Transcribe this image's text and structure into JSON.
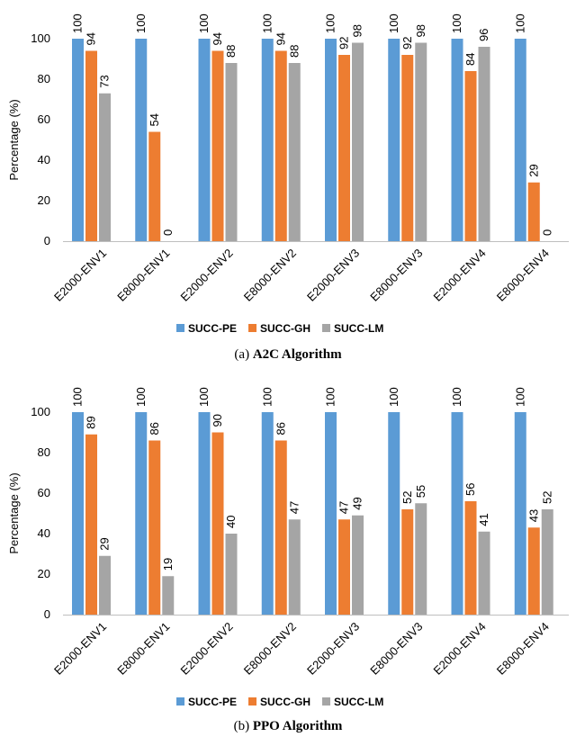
{
  "colors": {
    "pe": "#5B9BD5",
    "gh": "#ED7D31",
    "lm": "#A5A5A5",
    "grid": "#D9D9D9",
    "axis": "#BFBFBF"
  },
  "chart_data": [
    {
      "type": "bar",
      "caption_prefix": "(a)",
      "caption_title": "A2C Algorithm",
      "ylabel": "Percentage (%)",
      "ylim": [
        0,
        100
      ],
      "yticks": [
        0,
        20,
        40,
        60,
        80,
        100
      ],
      "categories": [
        "E2000-ENV1",
        "E8000-ENV1",
        "E2000-ENV2",
        "E8000-ENV2",
        "E2000-ENV3",
        "E8000-ENV3",
        "E2000-ENV4",
        "E8000-ENV4"
      ],
      "series": [
        {
          "name": "SUCC-PE",
          "values": [
            100,
            100,
            100,
            100,
            100,
            100,
            100,
            100
          ]
        },
        {
          "name": "SUCC-GH",
          "values": [
            94,
            54,
            94,
            94,
            92,
            92,
            84,
            29
          ]
        },
        {
          "name": "SUCC-LM",
          "values": [
            73,
            0,
            88,
            88,
            98,
            98,
            96,
            0
          ]
        }
      ],
      "legend_position": "bottom",
      "grid": false
    },
    {
      "type": "bar",
      "caption_prefix": "(b)",
      "caption_title": "PPO Algorithm",
      "ylabel": "Percentage (%)",
      "ylim": [
        0,
        100
      ],
      "yticks": [
        0,
        20,
        40,
        60,
        80,
        100
      ],
      "categories": [
        "E2000-ENV1",
        "E8000-ENV1",
        "E2000-ENV2",
        "E8000-ENV2",
        "E2000-ENV3",
        "E8000-ENV3",
        "E2000-ENV4",
        "E8000-ENV4"
      ],
      "series": [
        {
          "name": "SUCC-PE",
          "values": [
            100,
            100,
            100,
            100,
            100,
            100,
            100,
            100
          ]
        },
        {
          "name": "SUCC-GH",
          "values": [
            89,
            86,
            90,
            86,
            47,
            52,
            56,
            43
          ]
        },
        {
          "name": "SUCC-LM",
          "values": [
            29,
            19,
            40,
            47,
            49,
            55,
            41,
            52
          ]
        }
      ],
      "legend_position": "bottom",
      "grid": false
    }
  ]
}
